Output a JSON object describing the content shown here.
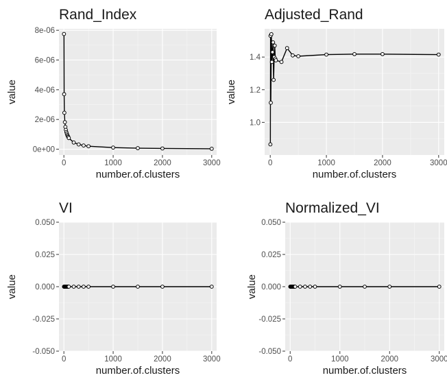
{
  "chart_data": [
    {
      "type": "line",
      "title": "Rand_Index",
      "xlabel": "number.of.clusters",
      "ylabel": "value",
      "xlim": [
        -100,
        3100
      ],
      "ylim": [
        -3.9e-07,
        8.1e-06
      ],
      "xticks": [
        0,
        1000,
        2000,
        3000
      ],
      "xtick_labels": [
        "0",
        "1000",
        "2000",
        "3000"
      ],
      "yticks": [
        0,
        2e-06,
        4e-06,
        6e-06,
        8e-06
      ],
      "ytick_labels": [
        "0e+00",
        "2e-06",
        "4e-06",
        "6e-06",
        "8e-06"
      ],
      "grid": true,
      "colors": {
        "panel": "#ebebeb",
        "line": "#000000",
        "point_fill": "#ffffff"
      },
      "x": [
        2,
        5,
        10,
        20,
        30,
        40,
        50,
        60,
        70,
        80,
        90,
        100,
        200,
        300,
        400,
        500,
        1000,
        1500,
        2000,
        3000
      ],
      "y": [
        7.75e-06,
        3.7e-06,
        2.45e-06,
        1.82e-06,
        1.5e-06,
        1.3e-06,
        1.15e-06,
        1.05e-06,
        9.5e-07,
        8.8e-07,
        8.2e-07,
        7.5e-07,
        4.5e-07,
        3.2e-07,
        2.5e-07,
        2e-07,
        1.1e-07,
        7e-08,
        5e-08,
        3e-08
      ]
    },
    {
      "type": "line",
      "title": "Adjusted_Rand",
      "xlabel": "number.of.clusters",
      "ylabel": "value",
      "xlim": [
        -100,
        3100
      ],
      "ylim": [
        0.8,
        1.573
      ],
      "xticks": [
        0,
        1000,
        2000,
        3000
      ],
      "xtick_labels": [
        "0",
        "1000",
        "2000",
        "3000"
      ],
      "yticks": [
        1.0,
        1.2,
        1.4
      ],
      "ytick_labels": [
        "1.0",
        "1.2",
        "1.4"
      ],
      "grid": true,
      "colors": {
        "panel": "#ebebeb",
        "line": "#000000",
        "point_fill": "#ffffff"
      },
      "x": [
        2,
        5,
        10,
        20,
        30,
        40,
        50,
        60,
        70,
        80,
        90,
        100,
        200,
        300,
        400,
        500,
        1000,
        1500,
        2000,
        3000
      ],
      "y": [
        0.865,
        1.53,
        1.12,
        1.54,
        1.37,
        1.43,
        1.49,
        1.26,
        1.4,
        1.47,
        1.39,
        1.38,
        1.37,
        1.455,
        1.41,
        1.405,
        1.415,
        1.418,
        1.418,
        1.415
      ]
    },
    {
      "type": "line",
      "title": "VI",
      "xlabel": "number.of.clusters",
      "ylabel": "value",
      "xlim": [
        -100,
        3100
      ],
      "ylim": [
        -0.05,
        0.05
      ],
      "xticks": [
        0,
        1000,
        2000,
        3000
      ],
      "xtick_labels": [
        "0",
        "1000",
        "2000",
        "3000"
      ],
      "yticks": [
        -0.05,
        -0.025,
        0,
        0.025,
        0.05
      ],
      "ytick_labels": [
        "-0.050",
        "-0.025",
        "0.000",
        "0.025",
        "0.050"
      ],
      "grid": true,
      "colors": {
        "panel": "#ebebeb",
        "line": "#000000",
        "point_fill": "#ffffff"
      },
      "x": [
        2,
        5,
        10,
        20,
        30,
        40,
        50,
        60,
        70,
        80,
        90,
        100,
        200,
        300,
        400,
        500,
        1000,
        1500,
        2000,
        3000
      ],
      "y": [
        0,
        0,
        0,
        0,
        0,
        0,
        0,
        0,
        0,
        0,
        0,
        0,
        0,
        0,
        0,
        0,
        0,
        0,
        0,
        0
      ]
    },
    {
      "type": "line",
      "title": "Normalized_VI",
      "xlabel": "number.of.clusters",
      "ylabel": "value",
      "xlim": [
        -100,
        3100
      ],
      "ylim": [
        -0.05,
        0.05
      ],
      "xticks": [
        0,
        1000,
        2000,
        3000
      ],
      "xtick_labels": [
        "0",
        "1000",
        "2000",
        "3000"
      ],
      "yticks": [
        -0.05,
        -0.025,
        0,
        0.025,
        0.05
      ],
      "ytick_labels": [
        "-0.050",
        "-0.025",
        "0.000",
        "0.025",
        "0.050"
      ],
      "grid": true,
      "colors": {
        "panel": "#ebebeb",
        "line": "#000000",
        "point_fill": "#ffffff"
      },
      "x": [
        2,
        5,
        10,
        20,
        30,
        40,
        50,
        60,
        70,
        80,
        90,
        100,
        200,
        300,
        400,
        500,
        1000,
        1500,
        2000,
        3000
      ],
      "y": [
        0,
        0,
        0,
        0,
        0,
        0,
        0,
        0,
        0,
        0,
        0,
        0,
        0,
        0,
        0,
        0,
        0,
        0,
        0,
        0
      ]
    }
  ]
}
